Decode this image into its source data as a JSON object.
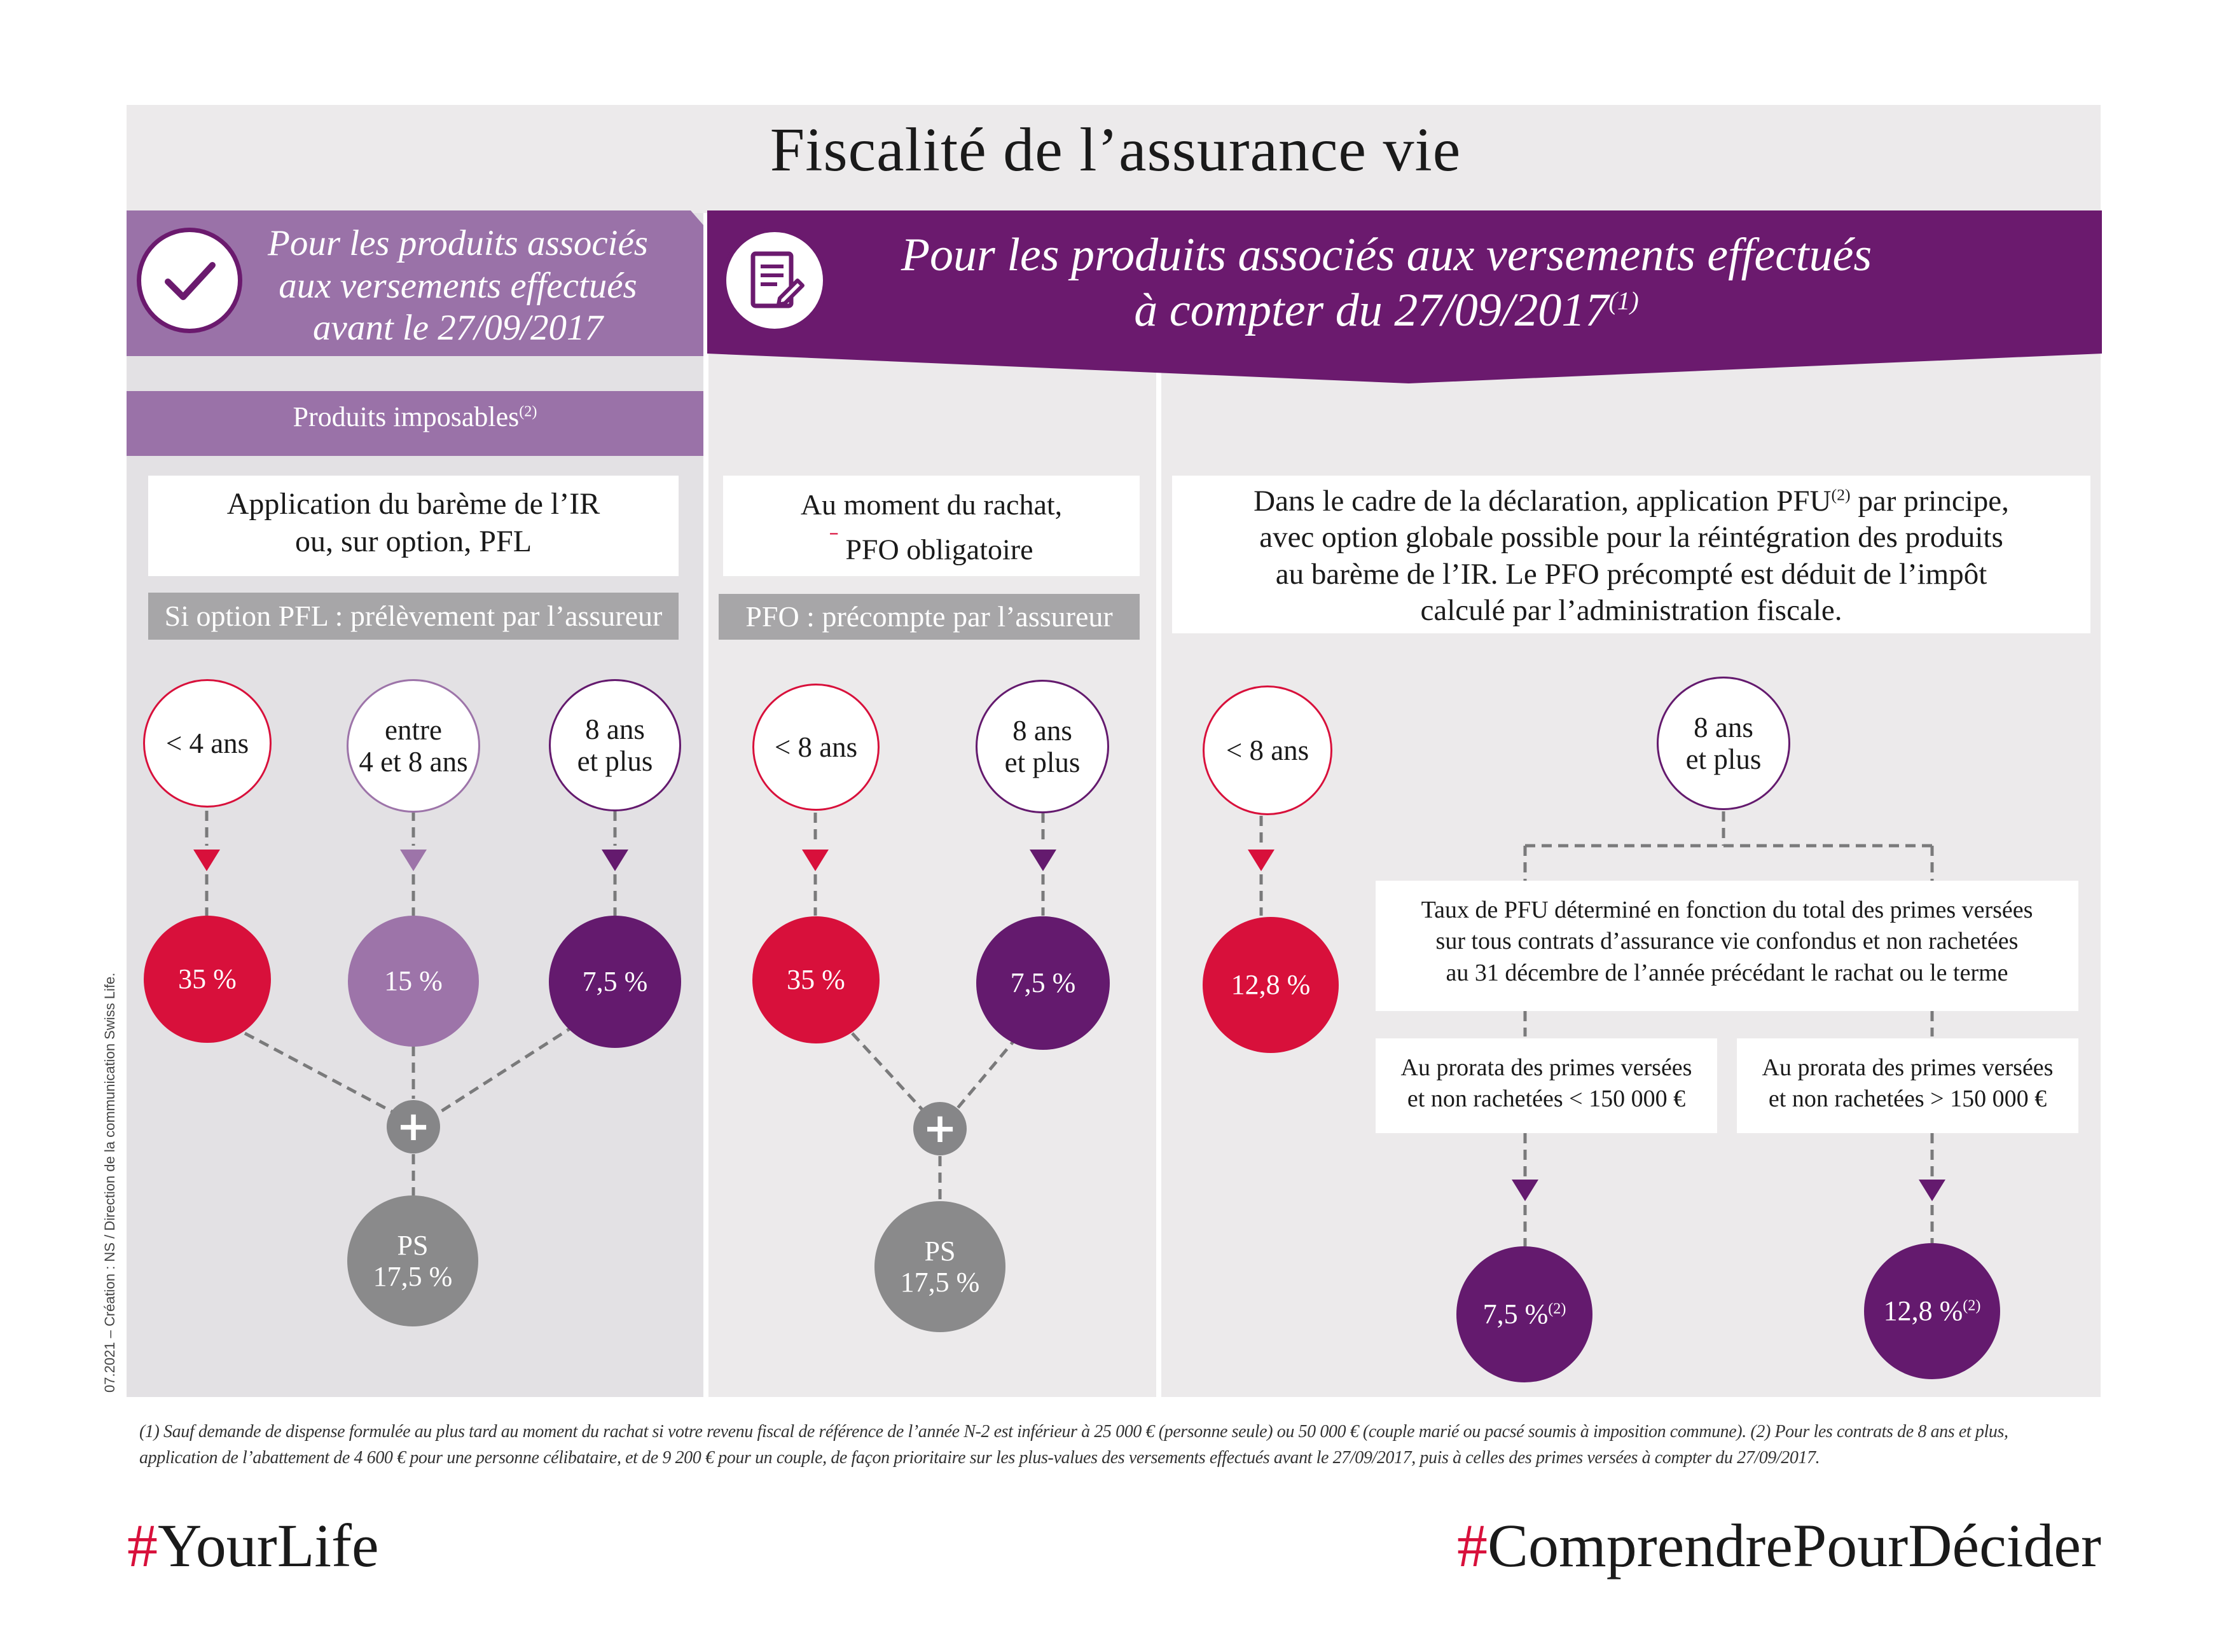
{
  "title": "Fiscalité de l’assurance vie",
  "colors": {
    "red": "#d8103b",
    "lilac": "#9d74a9",
    "purple": "#641a6e",
    "header_dark": "#6b1a6e",
    "header_light": "#9a72a8",
    "grey": "#8a8a8b"
  },
  "left": {
    "header": {
      "line1": "Pour les produits associés",
      "line2": "aux versements effectués",
      "line3": "avant le 27/09/2017",
      "icon": "checkmark-icon"
    },
    "subheader": "Produits imposables",
    "subheader_sup": "(2)",
    "rule": {
      "line1": "Application du barème de l’IR",
      "line2": "ou, sur option, PFL"
    },
    "label": "Si option PFL : prélèvement par l’assureur",
    "durations": [
      "< 4 ans",
      "entre",
      "4 et 8 ans",
      "8 ans",
      "et plus"
    ],
    "rates": [
      "35 %",
      "15 %",
      "7,5 %"
    ],
    "plus": "+",
    "ps": {
      "line1": "PS",
      "line2": "17,5 %"
    }
  },
  "right": {
    "header": {
      "line1": "Pour les produits associés aux versements effectués",
      "line2": "à compter du 27/09/2017",
      "sup": "(1)",
      "icon": "document-edit-icon"
    },
    "mid": {
      "rule": {
        "line1": "Au moment du rachat,",
        "line2": "PFO obligatoire"
      },
      "label": "PFO : précompte par l’assureur",
      "durations": [
        "< 8 ans",
        "8 ans",
        "et plus"
      ],
      "rates": [
        "35 %",
        "7,5 %"
      ],
      "plus": "+",
      "ps": {
        "line1": "PS",
        "line2": "17,5 %"
      }
    },
    "decl": {
      "line1a": "Dans le cadre de la déclaration, application PFU",
      "line1_sup": "(2)",
      "line1b": " par principe,",
      "line2": "avec option globale possible pour la réintégration des produits",
      "line3": "au barème de l’IR. Le PFO précompté est déduit de l’impôt",
      "line4": "calculé par l’administration fiscale.",
      "durations": [
        "< 8 ans",
        "8 ans",
        "et plus"
      ],
      "rate_short": "12,8 %",
      "pfu_box": {
        "line1": "Taux de PFU déterminé en fonction du total des primes versées",
        "line2": "sur tous contrats d’assurance vie confondus et non rachetées",
        "line3": "au 31 décembre de l’année précédant le rachat ou le terme"
      },
      "prorata_low": {
        "line1": "Au prorata des primes versées",
        "line2": "et non rachetées < 150 000 €"
      },
      "prorata_high": {
        "line1": "Au prorata des primes versées",
        "line2": "et non rachetées > 150 000 €"
      },
      "rate_low": "7,5 %",
      "rate_high": "12,8 %",
      "rate_sup": "(2)"
    }
  },
  "footnote": {
    "line1": "(1) Sauf demande de dispense formulée au plus tard au moment du rachat si votre revenu fiscal de référence de l’année N-2 est inférieur à 25 000 € (personne seule) ou 50 000 € (couple marié ou pacsé soumis à imposition commune). (2) Pour les contrats de 8 ans et plus,",
    "line2": "application de l’abattement de 4 600 € pour une personne célibataire, et de 9 200 € pour un couple, de façon prioritaire sur les plus-values des versements effectués avant le 27/09/2017, puis à celles des primes versées à compter du 27/09/2017."
  },
  "credit": "07.2021 – Création : NS / Direction de la communication Swiss Life.",
  "hashtag_left_mark": "#",
  "hashtag_left": "YourLife",
  "hashtag_right_mark": "#",
  "hashtag_right": "ComprendrePourDécider"
}
